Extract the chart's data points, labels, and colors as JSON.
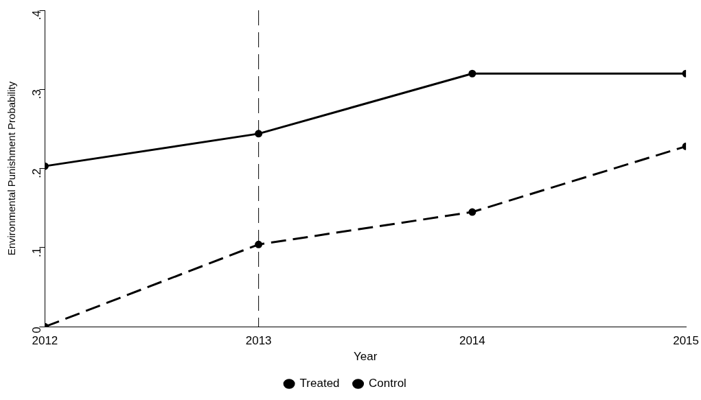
{
  "chart_data": {
    "type": "line",
    "xlabel": "Year",
    "ylabel": "Environmental Punishment Probability",
    "x": [
      2012,
      2013,
      2014,
      2015
    ],
    "series": [
      {
        "name": "Treated",
        "color": "#000000",
        "values": [
          0,
          0.104,
          0.145,
          0.228
        ],
        "line_style": "dashed"
      },
      {
        "name": "Control",
        "color": "#000000",
        "values": [
          0.203,
          0.244,
          0.32,
          0.32
        ],
        "line_style": "solid"
      }
    ],
    "xlim": [
      2012,
      2015
    ],
    "xticks": [
      2012,
      2013,
      2014,
      2015
    ],
    "ylim": [
      0,
      0.4
    ],
    "yticks": [
      {
        "value": 0,
        "label": "0"
      },
      {
        "value": 0.1,
        "label": ".1"
      },
      {
        "value": 0.2,
        "label": ".2"
      },
      {
        "value": 0.3,
        "label": ".3"
      },
      {
        "value": 0.4,
        "label": ".4"
      }
    ],
    "ref_lines": [
      {
        "axis": "x",
        "value": 2013,
        "line_style": "dashed"
      }
    ],
    "marker": "circle",
    "grid": false,
    "legend": "bottom"
  }
}
